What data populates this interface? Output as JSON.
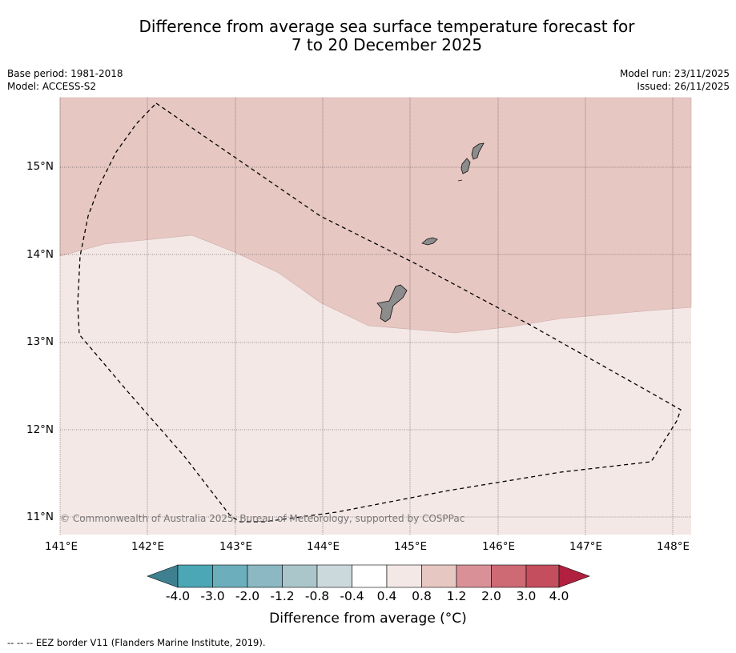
{
  "title": {
    "line1": "Difference from average sea surface temperature forecast for",
    "line2": "7 to 20 December 2025"
  },
  "meta": {
    "base_period": "Base period: 1981-2018",
    "model": "Model: ACCESS-S2",
    "model_run": "Model run: 23/11/2025",
    "issued": "Issued: 26/11/2025"
  },
  "map": {
    "lon_labels": [
      "141°E",
      "142°E",
      "143°E",
      "144°E",
      "145°E",
      "146°E",
      "147°E",
      "148°E"
    ],
    "lat_labels": [
      "15°N",
      "14°N",
      "13°N",
      "12°N",
      "11°N"
    ],
    "copyright": "© Commonwealth of Australia 2025, Bureau of Meteorology, supported by COSPPac",
    "islands": [
      "Guam",
      "Rota",
      "Tinian",
      "Saipan"
    ],
    "regions": [
      {
        "name": "north",
        "category": "0.8 to 1.2",
        "color": "#e7c7c2"
      },
      {
        "name": "south",
        "category": "0.4 to 0.8",
        "color": "#f4e8e6"
      }
    ],
    "land_color": "#8c8c8c",
    "eez_style": "dashed"
  },
  "colorbar": {
    "ticks": [
      "-4.0",
      "-3.0",
      "-2.0",
      "-1.2",
      "-0.8",
      "-0.4",
      "0.4",
      "0.8",
      "1.2",
      "2.0",
      "3.0",
      "4.0"
    ],
    "colors": [
      "#4ba6b5",
      "#6caebb",
      "#8bb8c2",
      "#aac6ca",
      "#ccd9dc",
      "#ffffff",
      "#f4e8e6",
      "#e7c7c2",
      "#d99197",
      "#cd6a74",
      "#c44e5d"
    ],
    "under_color": "#3f8090",
    "over_color": "#b22040",
    "label": "Difference from average (°C)"
  },
  "legend_note": "--  --  -- EEZ border V11 (Flanders Marine Institute, 2019)."
}
